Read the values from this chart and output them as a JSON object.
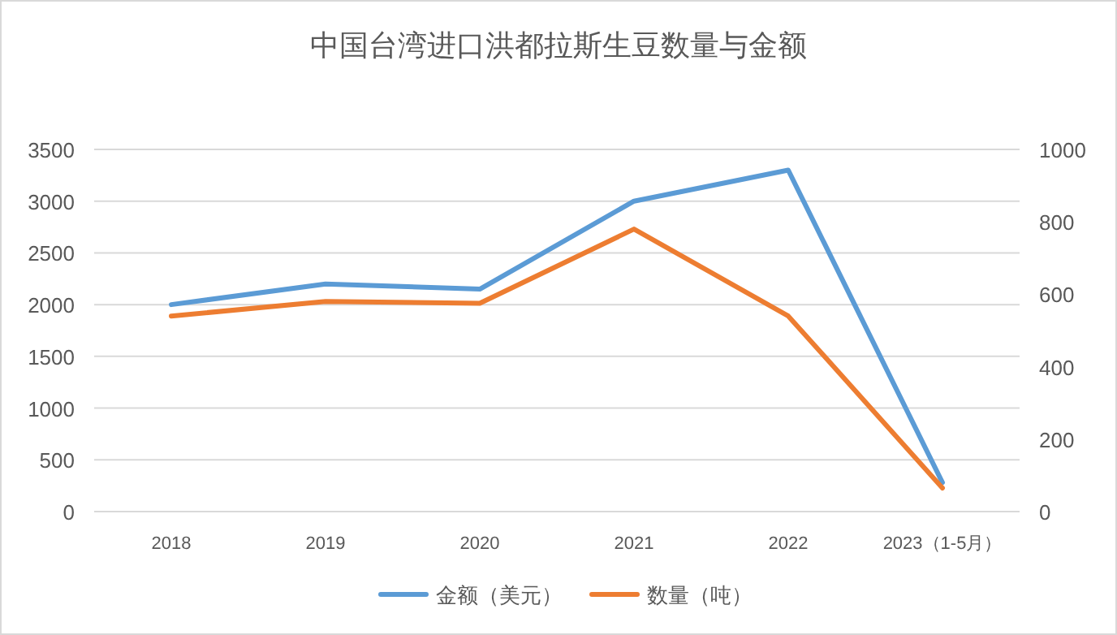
{
  "chart_data": {
    "type": "line",
    "title": "中国台湾进口洪都拉斯生豆数量与金额",
    "categories": [
      "2018",
      "2019",
      "2020",
      "2021",
      "2022",
      "2023（1-5月）"
    ],
    "series": [
      {
        "name": "金额（美元）",
        "color": "#5b9bd5",
        "values": [
          2000,
          2200,
          2150,
          3000,
          3300,
          280
        ]
      },
      {
        "name": "数量（吨）",
        "color": "#ed7d31",
        "axis": "y2",
        "values": [
          540,
          580,
          575,
          780,
          540,
          65
        ]
      }
    ],
    "ylim": [
      0,
      3500
    ],
    "yticks": [
      0,
      500,
      1000,
      1500,
      2000,
      2500,
      3000,
      3500
    ],
    "y2lim": [
      0,
      1000
    ],
    "y2ticks": [
      0,
      200,
      400,
      600,
      800,
      1000
    ],
    "grid": "y",
    "legend": "bottom",
    "marker": "none",
    "line_style": "solid"
  }
}
